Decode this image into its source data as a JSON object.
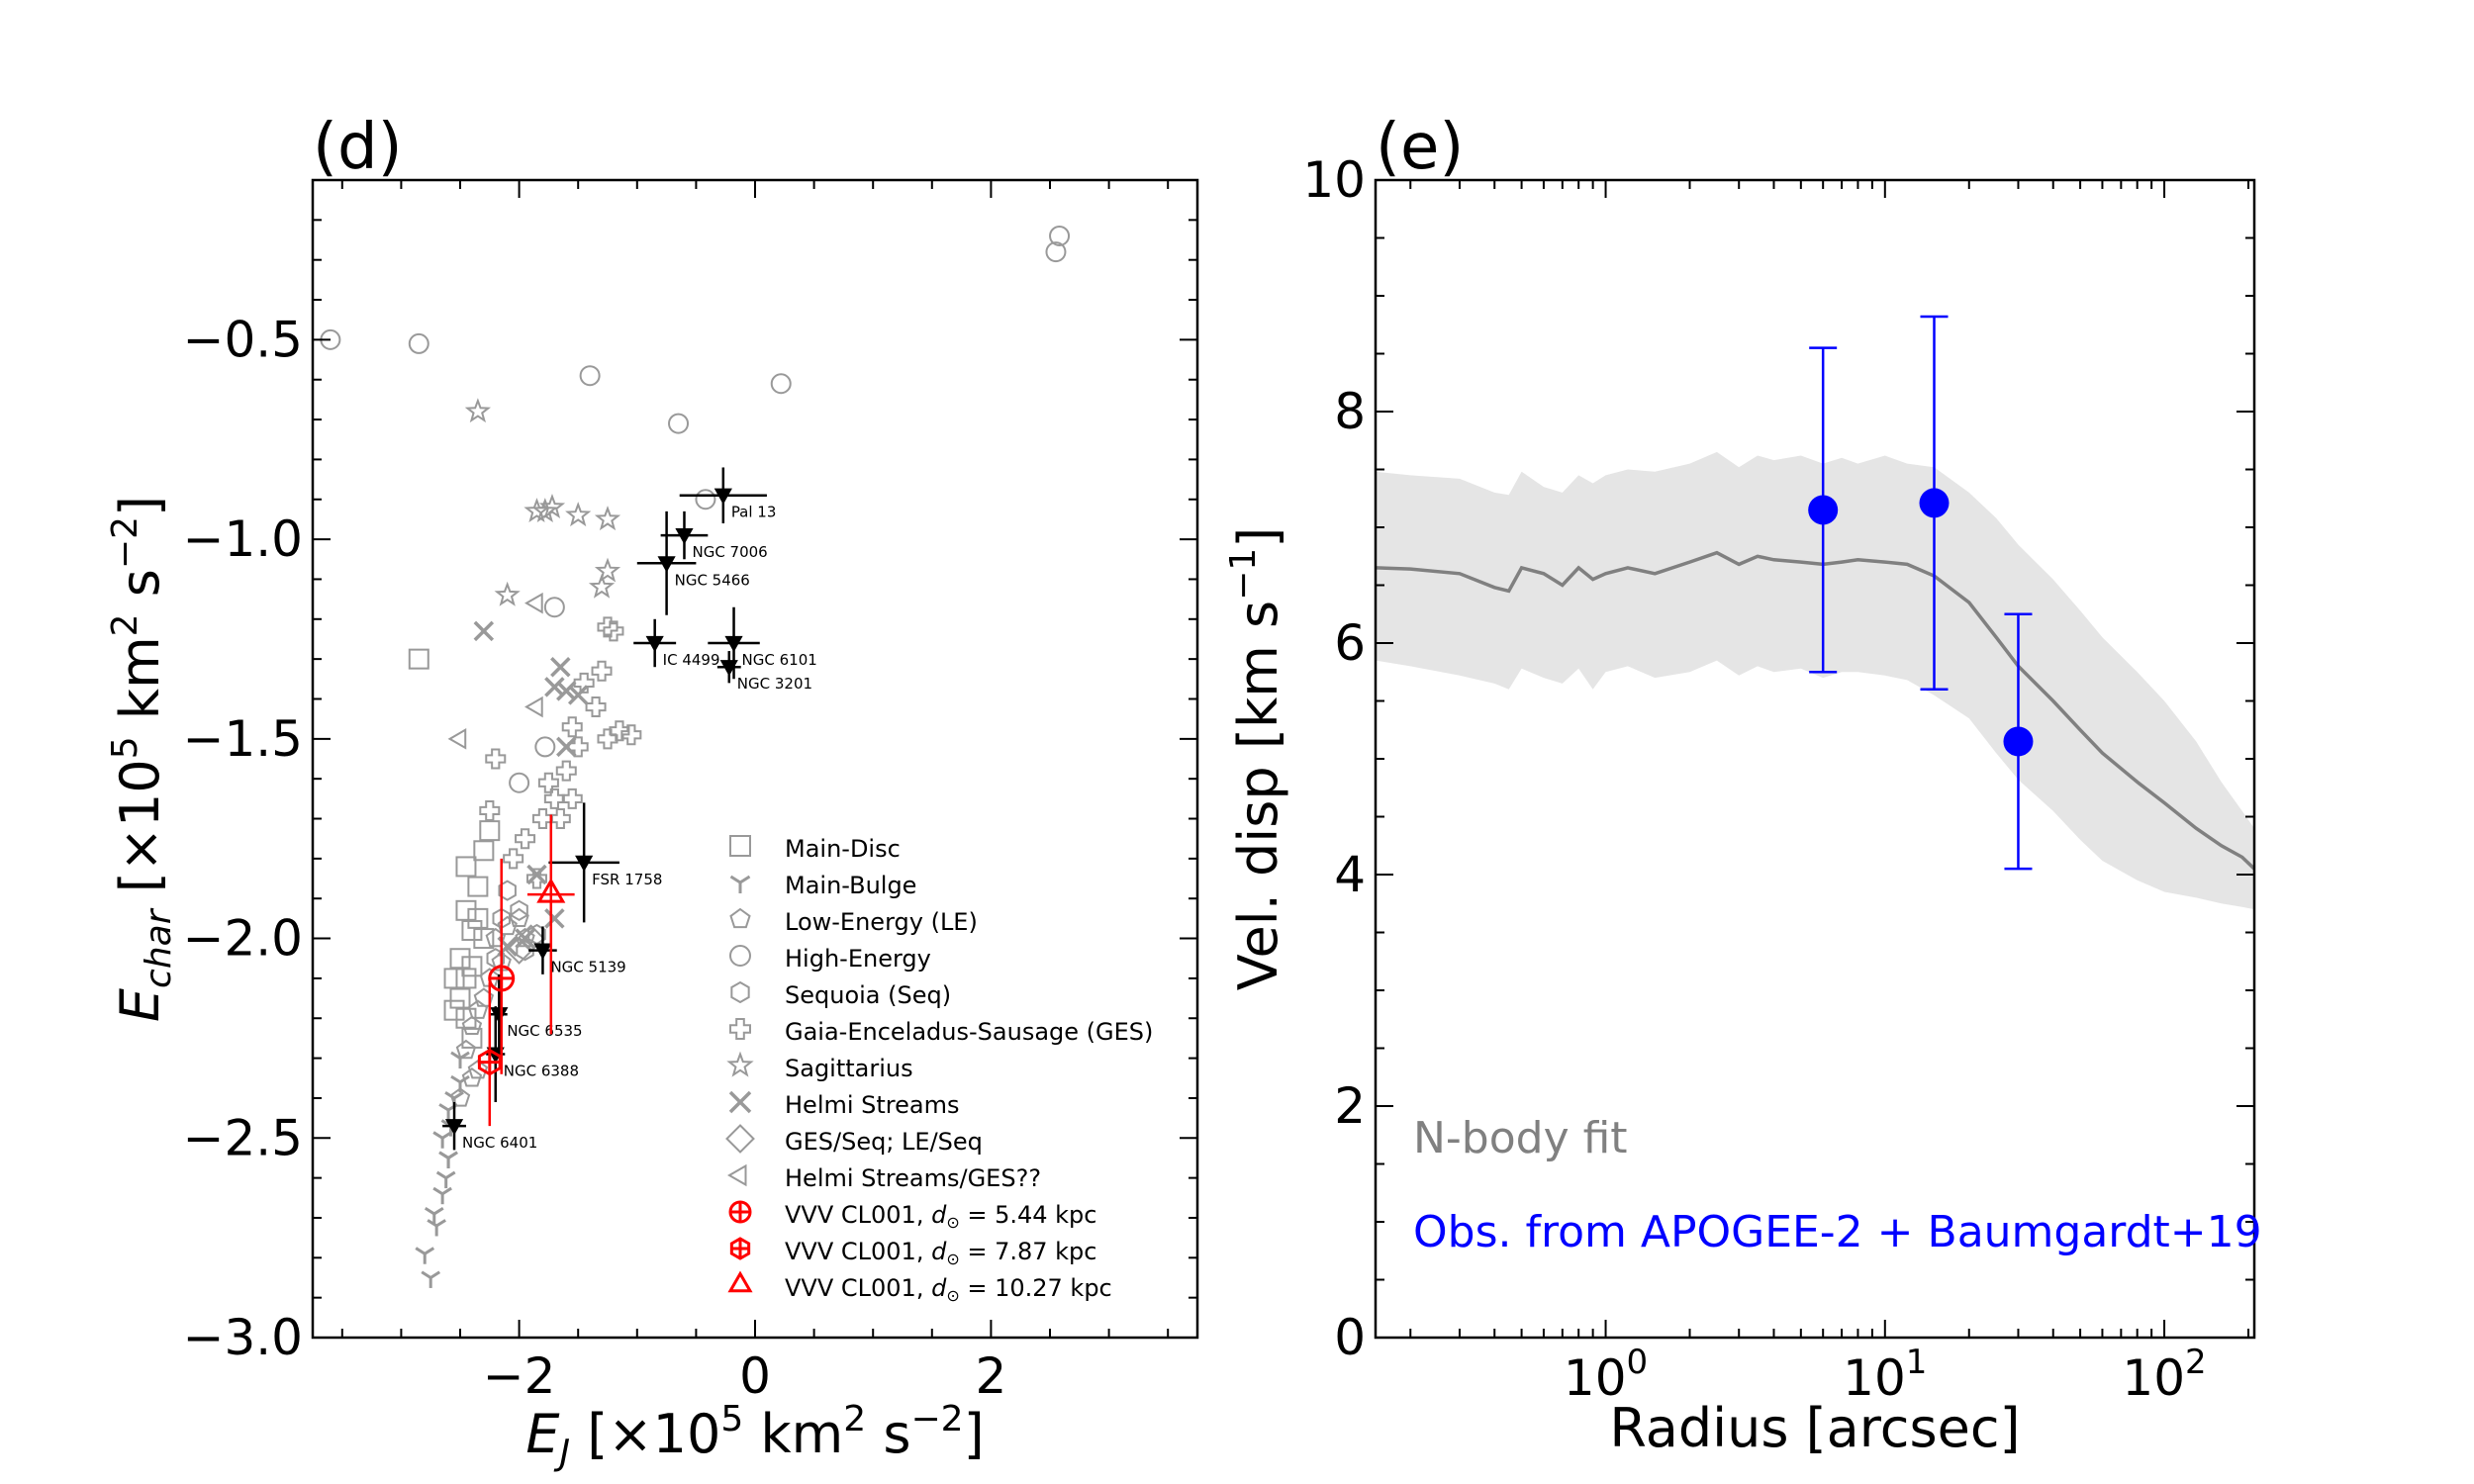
{
  "chart_data": [
    {
      "type": "scatter",
      "panel_label": "(d)",
      "xlabel": "E_J [×10^5 km^2 s^-2]",
      "ylabel": "E_char [×10^5 km^2 s^-2]",
      "xlim": [
        -3.75,
        3.75
      ],
      "ylim": [
        -3.0,
        -0.1
      ],
      "xticks": [
        -2,
        0,
        2
      ],
      "xtick_labels": [
        "−2",
        "0",
        "2"
      ],
      "yticks": [
        -3.0,
        -2.5,
        -2.0,
        -1.5,
        -1.0,
        -0.5
      ],
      "ytick_labels": [
        "−3.0",
        "−2.5",
        "−2.0",
        "−1.5",
        "−1.0",
        "−0.5"
      ],
      "legend": [
        {
          "label": "Main-Disc",
          "marker": "square",
          "color": "#999999"
        },
        {
          "label": "Main-Bulge",
          "marker": "tri_down",
          "color": "#999999"
        },
        {
          "label": "Low-Energy (LE)",
          "marker": "pentagon",
          "color": "#999999"
        },
        {
          "label": "High-Energy",
          "marker": "circle",
          "color": "#999999"
        },
        {
          "label": "Sequoia (Seq)",
          "marker": "hexagon",
          "color": "#999999"
        },
        {
          "label": "Gaia-Enceladus-Sausage (GES)",
          "marker": "plus_open",
          "color": "#999999"
        },
        {
          "label": "Sagittarius",
          "marker": "star",
          "color": "#999999"
        },
        {
          "label": "Helmi Streams",
          "marker": "x",
          "color": "#999999"
        },
        {
          "label": "GES/Seq; LE/Seq",
          "marker": "diamond",
          "color": "#999999"
        },
        {
          "label": "Helmi Streams/GES??",
          "marker": "tri_left",
          "color": "#999999"
        },
        {
          "label": "VVV CL001, ",
          "math": "d⊙ = 5.44 kpc",
          "marker": "circle_cross",
          "color": "#ff0000"
        },
        {
          "label": "VVV CL001, ",
          "math": "d⊙ = 7.87 kpc",
          "marker": "hex_cross",
          "color": "#ff0000"
        },
        {
          "label": "VVV CL001, ",
          "math": "d⊙ = 10.27 kpc",
          "marker": "triangle",
          "color": "#ff0000"
        }
      ],
      "background_points": [
        {
          "marker": "circle",
          "points": [
            [
              -3.6,
              -0.5
            ],
            [
              -2.85,
              -0.51
            ],
            [
              -1.4,
              -0.59
            ],
            [
              -0.65,
              -0.71
            ],
            [
              0.22,
              -0.61
            ],
            [
              2.55,
              -0.28
            ],
            [
              2.58,
              -0.24
            ],
            [
              -1.7,
              -1.17
            ],
            [
              -0.42,
              -0.9
            ],
            [
              -1.78,
              -1.52
            ],
            [
              -2.0,
              -1.61
            ]
          ]
        },
        {
          "marker": "square",
          "points": [
            [
              -2.85,
              -1.3
            ],
            [
              -2.25,
              -1.73
            ],
            [
              -2.3,
              -1.78
            ],
            [
              -2.45,
              -1.82
            ],
            [
              -2.35,
              -1.87
            ],
            [
              -2.45,
              -1.93
            ],
            [
              -2.4,
              -1.98
            ],
            [
              -2.5,
              -2.05
            ],
            [
              -2.45,
              -2.1
            ],
            [
              -2.5,
              -2.15
            ],
            [
              -2.45,
              -2.2
            ],
            [
              -2.4,
              -2.25
            ],
            [
              -2.35,
              -1.95
            ],
            [
              -2.3,
              -2.0
            ],
            [
              -2.4,
              -2.07
            ],
            [
              -2.55,
              -2.1
            ],
            [
              -2.55,
              -2.18
            ]
          ]
        },
        {
          "marker": "tri_down",
          "points": [
            [
              -2.75,
              -2.85
            ],
            [
              -2.8,
              -2.79
            ],
            [
              -2.7,
              -2.72
            ],
            [
              -2.72,
              -2.69
            ],
            [
              -2.65,
              -2.64
            ],
            [
              -2.62,
              -2.6
            ],
            [
              -2.6,
              -2.55
            ],
            [
              -2.65,
              -2.5
            ],
            [
              -2.58,
              -2.47
            ],
            [
              -2.6,
              -2.43
            ],
            [
              -2.55,
              -2.4
            ],
            [
              -2.5,
              -2.36
            ],
            [
              -2.6,
              -2.55
            ],
            [
              -2.5,
              -2.3
            ]
          ]
        },
        {
          "marker": "pentagon",
          "points": [
            [
              -2.0,
              -1.95
            ],
            [
              -1.95,
              -2.0
            ],
            [
              -2.1,
              -1.97
            ],
            [
              -2.2,
              -2.0
            ],
            [
              -2.15,
              -2.06
            ],
            [
              -2.25,
              -2.1
            ],
            [
              -2.3,
              -2.15
            ],
            [
              -2.35,
              -2.18
            ],
            [
              -2.4,
              -2.22
            ],
            [
              -2.45,
              -2.28
            ],
            [
              -2.4,
              -2.35
            ],
            [
              -2.35,
              -2.33
            ],
            [
              -2.5,
              -2.4
            ]
          ]
        },
        {
          "marker": "hexagon",
          "points": [
            [
              -2.1,
              -1.88
            ],
            [
              -2.0,
              -1.93
            ],
            [
              -1.95,
              -2.03
            ],
            [
              -1.85,
              -1.99
            ],
            [
              -2.15,
              -1.95
            ],
            [
              -2.2,
              -2.05
            ]
          ]
        },
        {
          "marker": "plus_open",
          "points": [
            [
              -1.25,
              -1.22
            ],
            [
              -1.2,
              -1.23
            ],
            [
              -1.3,
              -1.33
            ],
            [
              -1.45,
              -1.36
            ],
            [
              -1.35,
              -1.42
            ],
            [
              -1.55,
              -1.47
            ],
            [
              -1.15,
              -1.48
            ],
            [
              -1.25,
              -1.5
            ],
            [
              -1.05,
              -1.49
            ],
            [
              -1.5,
              -1.52
            ],
            [
              -1.6,
              -1.58
            ],
            [
              -1.75,
              -1.61
            ],
            [
              -1.7,
              -1.65
            ],
            [
              -1.55,
              -1.65
            ],
            [
              -1.65,
              -1.7
            ],
            [
              -1.8,
              -1.7
            ],
            [
              -1.95,
              -1.75
            ],
            [
              -2.05,
              -1.8
            ],
            [
              -2.25,
              -1.68
            ],
            [
              -2.2,
              -1.55
            ],
            [
              -1.85,
              -1.85
            ]
          ]
        },
        {
          "marker": "star",
          "points": [
            [
              -2.35,
              -0.68
            ],
            [
              -1.85,
              -0.93
            ],
            [
              -1.78,
              -0.93
            ],
            [
              -1.72,
              -0.92
            ],
            [
              -1.5,
              -0.94
            ],
            [
              -1.25,
              -0.95
            ],
            [
              -1.25,
              -1.08
            ],
            [
              -1.3,
              -1.12
            ],
            [
              -2.1,
              -1.14
            ]
          ]
        },
        {
          "marker": "x",
          "points": [
            [
              -2.3,
              -1.23
            ],
            [
              -1.65,
              -1.32
            ],
            [
              -1.7,
              -1.37
            ],
            [
              -1.5,
              -1.39
            ],
            [
              -1.6,
              -1.38
            ],
            [
              -1.6,
              -1.52
            ],
            [
              -1.85,
              -1.84
            ],
            [
              -1.7,
              -1.95
            ],
            [
              -1.95,
              -2.0
            ],
            [
              -2.1,
              -2.02
            ]
          ]
        },
        {
          "marker": "diamond",
          "points": [
            [
              -2.0,
              -2.03
            ],
            [
              -1.9,
              -2.0
            ]
          ]
        },
        {
          "marker": "tri_left",
          "points": [
            [
              -2.5,
              -1.5
            ],
            [
              -1.85,
              -1.16
            ],
            [
              -1.85,
              -1.42
            ]
          ]
        }
      ],
      "named_clusters": [
        {
          "name": "Pal 13",
          "x": -0.27,
          "y": -0.89,
          "xerr": 0.37,
          "yerr": 0.07
        },
        {
          "name": "NGC 7006",
          "x": -0.6,
          "y": -0.99,
          "xerr": 0.2,
          "yerr": 0.06
        },
        {
          "name": "NGC 5466",
          "x": -0.75,
          "y": -1.06,
          "xerr": 0.25,
          "yerr": 0.13
        },
        {
          "name": "IC 4499",
          "x": -0.85,
          "y": -1.26,
          "xerr": 0.18,
          "yerr": 0.06
        },
        {
          "name": "NGC 6101",
          "x": -0.18,
          "y": -1.26,
          "xerr": 0.22,
          "yerr": 0.09
        },
        {
          "name": "NGC 3201",
          "x": -0.22,
          "y": -1.32,
          "xerr": 0.1,
          "yerr": 0.04
        },
        {
          "name": "FSR 1758",
          "x": -1.45,
          "y": -1.81,
          "xerr": 0.3,
          "yerr": 0.15
        },
        {
          "name": "NGC 5139",
          "x": -1.8,
          "y": -2.03,
          "xerr": 0.12,
          "yerr": 0.06
        },
        {
          "name": "NGC 6535",
          "x": -2.17,
          "y": -2.19,
          "xerr": 0.07,
          "yerr": 0.1
        },
        {
          "name": "NGC 6388",
          "x": -2.2,
          "y": -2.29,
          "xerr": 0.08,
          "yerr": 0.12
        },
        {
          "name": "NGC 6401",
          "x": -2.55,
          "y": -2.47,
          "xerr": 0.1,
          "yerr": 0.06
        }
      ],
      "vvv_cl001": [
        {
          "label": "d⊙ = 5.44 kpc",
          "marker": "circle_cross",
          "x": -2.15,
          "y": -2.1,
          "xerr": 0.0,
          "yerr_low": 0.24,
          "yerr_high": 0.3
        },
        {
          "label": "d⊙ = 7.87 kpc",
          "marker": "hex_cross",
          "x": -2.25,
          "y": -2.31,
          "xerr": 0.0,
          "yerr_low": 0.16,
          "yerr_high": 0.2
        },
        {
          "label": "d⊙ = 10.27 kpc",
          "marker": "triangle",
          "x": -1.73,
          "y": -1.89,
          "xerr": 0.2,
          "yerr_low": 0.35,
          "yerr_high": 0.2
        }
      ]
    },
    {
      "type": "line",
      "panel_label": "(e)",
      "xlabel": "Radius [arcsec]",
      "ylabel": "Vel. disp [km s^-1]",
      "xscale": "log",
      "xlim": [
        0.15,
        210
      ],
      "ylim": [
        0,
        10
      ],
      "xticks": [
        1,
        10,
        100
      ],
      "xtick_labels": [
        {
          "base": "10",
          "exp": "0"
        },
        {
          "base": "10",
          "exp": "1"
        },
        {
          "base": "10",
          "exp": "2"
        }
      ],
      "yticks": [
        0,
        2,
        4,
        6,
        8,
        10
      ],
      "ytick_labels": [
        "0",
        "2",
        "4",
        "6",
        "8",
        "10"
      ],
      "model": {
        "name": "N-body fit",
        "color": "#808080",
        "band_color": "#e5e5e5",
        "x": [
          0.15,
          0.2,
          0.3,
          0.4,
          0.45,
          0.5,
          0.6,
          0.7,
          0.8,
          0.9,
          1.0,
          1.2,
          1.5,
          2.0,
          2.5,
          3.0,
          3.5,
          4.0,
          5.0,
          6.0,
          7.0,
          8.0,
          10.0,
          12.0,
          15.0,
          20.0,
          25.0,
          30.0,
          40.0,
          50.0,
          60.0,
          80.0,
          100.0,
          130.0,
          160.0,
          190.0,
          210.0
        ],
        "y": [
          6.65,
          6.64,
          6.6,
          6.48,
          6.45,
          6.65,
          6.6,
          6.5,
          6.65,
          6.55,
          6.6,
          6.65,
          6.6,
          6.7,
          6.78,
          6.68,
          6.75,
          6.72,
          6.7,
          6.68,
          6.7,
          6.72,
          6.7,
          6.68,
          6.58,
          6.35,
          6.05,
          5.8,
          5.5,
          5.25,
          5.05,
          4.8,
          4.62,
          4.4,
          4.25,
          4.15,
          4.05
        ],
        "lo": [
          5.85,
          5.8,
          5.72,
          5.65,
          5.6,
          5.78,
          5.7,
          5.65,
          5.78,
          5.6,
          5.75,
          5.8,
          5.7,
          5.75,
          5.85,
          5.72,
          5.8,
          5.75,
          5.78,
          5.7,
          5.75,
          5.75,
          5.72,
          5.68,
          5.55,
          5.35,
          5.05,
          4.82,
          4.55,
          4.3,
          4.12,
          3.95,
          3.85,
          3.8,
          3.75,
          3.72,
          3.7
        ],
        "hi": [
          7.48,
          7.45,
          7.42,
          7.3,
          7.28,
          7.48,
          7.35,
          7.3,
          7.45,
          7.38,
          7.45,
          7.5,
          7.48,
          7.55,
          7.65,
          7.52,
          7.62,
          7.58,
          7.62,
          7.55,
          7.6,
          7.55,
          7.62,
          7.55,
          7.52,
          7.3,
          7.08,
          6.85,
          6.55,
          6.28,
          6.05,
          5.75,
          5.5,
          5.15,
          4.8,
          4.55,
          4.4
        ]
      },
      "observations": {
        "name": "Obs. from APOGEE-2 + Baumgardt+19",
        "color": "#0000ff",
        "x": [
          6.0,
          15.0,
          30.0
        ],
        "y": [
          7.15,
          7.21,
          5.15
        ],
        "yerr_low": [
          1.4,
          1.61,
          1.1
        ],
        "yerr_high": [
          1.4,
          1.61,
          1.1
        ]
      }
    }
  ]
}
